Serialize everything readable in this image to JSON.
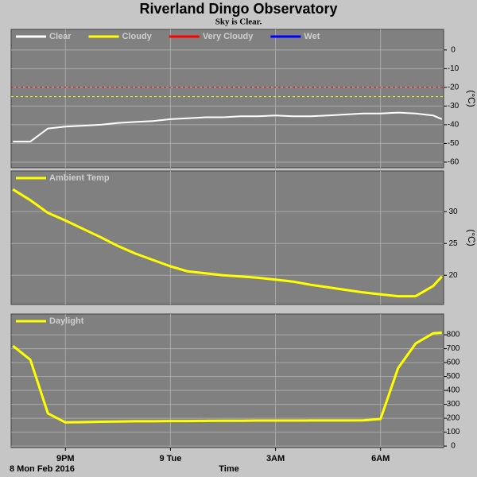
{
  "title": "Riverland Dingo Observatory",
  "subtitle": "Sky is Clear.",
  "date_label": "8 Mon Feb 2016",
  "x_label": "Time",
  "chart_data": [
    {
      "type": "line",
      "y_label": "(°C)",
      "legend": "upper left",
      "x": [
        19.5,
        20,
        20.5,
        21,
        21.5,
        22,
        22.5,
        23,
        23.5,
        24,
        24.5,
        25,
        25.5,
        26,
        26.5,
        27,
        27.5,
        28,
        28.5,
        29,
        29.5,
        30,
        30.5,
        31,
        31.5,
        31.75
      ],
      "xlim": [
        19.45,
        31.8
      ],
      "xticks": [
        21,
        24,
        27,
        30
      ],
      "ylim": [
        -63,
        11
      ],
      "yticks": [
        0,
        -10,
        -20,
        -30,
        -40,
        -50,
        -60
      ],
      "grid": true,
      "reference_lines": [
        {
          "value": -20,
          "color": "#ff0000"
        },
        {
          "value": -25,
          "color": "#ffff00"
        }
      ],
      "series": [
        {
          "name": "Clear",
          "color": "#ffffff",
          "values": [
            -49,
            -49,
            -42,
            -41,
            -40.5,
            -40,
            -39,
            -38.5,
            -38,
            -37,
            -36.5,
            -36,
            -36,
            -35.5,
            -35.5,
            -35,
            -35.5,
            -35.5,
            -35,
            -34.5,
            -34,
            -34,
            -33.5,
            -34,
            -35,
            -37
          ]
        },
        {
          "name": "Cloudy",
          "color": "#ffff00",
          "values": [
            null,
            null,
            null,
            null,
            null,
            null,
            null,
            null,
            null,
            null,
            null,
            null,
            null,
            null,
            null,
            null,
            null,
            null,
            null,
            null,
            null,
            null,
            null,
            null,
            null,
            null
          ]
        },
        {
          "name": "Very Cloudy",
          "color": "#ff0000",
          "values": [
            null,
            null,
            null,
            null,
            null,
            null,
            null,
            null,
            null,
            null,
            null,
            null,
            null,
            null,
            null,
            null,
            null,
            null,
            null,
            null,
            null,
            null,
            null,
            null,
            null,
            null
          ]
        },
        {
          "name": "Wet",
          "color": "#0000ff",
          "values": [
            null,
            null,
            null,
            null,
            null,
            null,
            null,
            null,
            null,
            null,
            null,
            null,
            null,
            null,
            null,
            null,
            null,
            null,
            null,
            null,
            null,
            null,
            null,
            null,
            null,
            null
          ]
        }
      ]
    },
    {
      "type": "line",
      "y_label": "(°C)",
      "legend": "upper left",
      "x": [
        19.5,
        20,
        20.5,
        21,
        21.5,
        22,
        22.5,
        23,
        23.5,
        24,
        24.5,
        25,
        25.5,
        26,
        26.5,
        27,
        27.5,
        28,
        28.5,
        29,
        29.5,
        30,
        30.5,
        31,
        31.5,
        31.75
      ],
      "xlim": [
        19.45,
        31.8
      ],
      "xticks": [
        21,
        24,
        27,
        30
      ],
      "ylim": [
        15.4,
        36.4
      ],
      "yticks": [
        30,
        25,
        20
      ],
      "grid": true,
      "series": [
        {
          "name": "Ambient Temp",
          "color": "#ffff00",
          "values": [
            33.5,
            31.8,
            29.8,
            28.6,
            27.3,
            26.0,
            24.6,
            23.4,
            22.4,
            21.4,
            20.6,
            20.3,
            20.0,
            19.8,
            19.6,
            19.3,
            19.0,
            18.5,
            18.1,
            17.7,
            17.3,
            17.0,
            16.7,
            16.7,
            18.3,
            19.8
          ]
        }
      ]
    },
    {
      "type": "line",
      "legend": "upper left",
      "x": [
        19.5,
        20,
        20.5,
        21,
        21.5,
        22,
        22.5,
        23,
        23.5,
        24,
        24.5,
        25,
        25.5,
        26,
        26.5,
        27,
        27.5,
        28,
        28.5,
        29,
        29.5,
        30,
        30.5,
        31,
        31.5,
        31.75
      ],
      "xlim": [
        19.45,
        31.8
      ],
      "xticks": [
        {
          "value": 21,
          "label": "9PM"
        },
        {
          "value": 24,
          "label": "9 Tue"
        },
        {
          "value": 27,
          "label": "3AM"
        },
        {
          "value": 30,
          "label": "6AM"
        }
      ],
      "ylim": [
        -11,
        949
      ],
      "yticks": [
        800,
        700,
        600,
        500,
        400,
        300,
        200,
        100,
        0
      ],
      "grid": true,
      "series": [
        {
          "name": "Daylight",
          "color": "#ffff00",
          "values": [
            720,
            620,
            234,
            170,
            172,
            175,
            176,
            178,
            178,
            180,
            180,
            181,
            182,
            182,
            183,
            183,
            183,
            184,
            184,
            184,
            185,
            195,
            560,
            737,
            810,
            815
          ]
        }
      ]
    }
  ]
}
